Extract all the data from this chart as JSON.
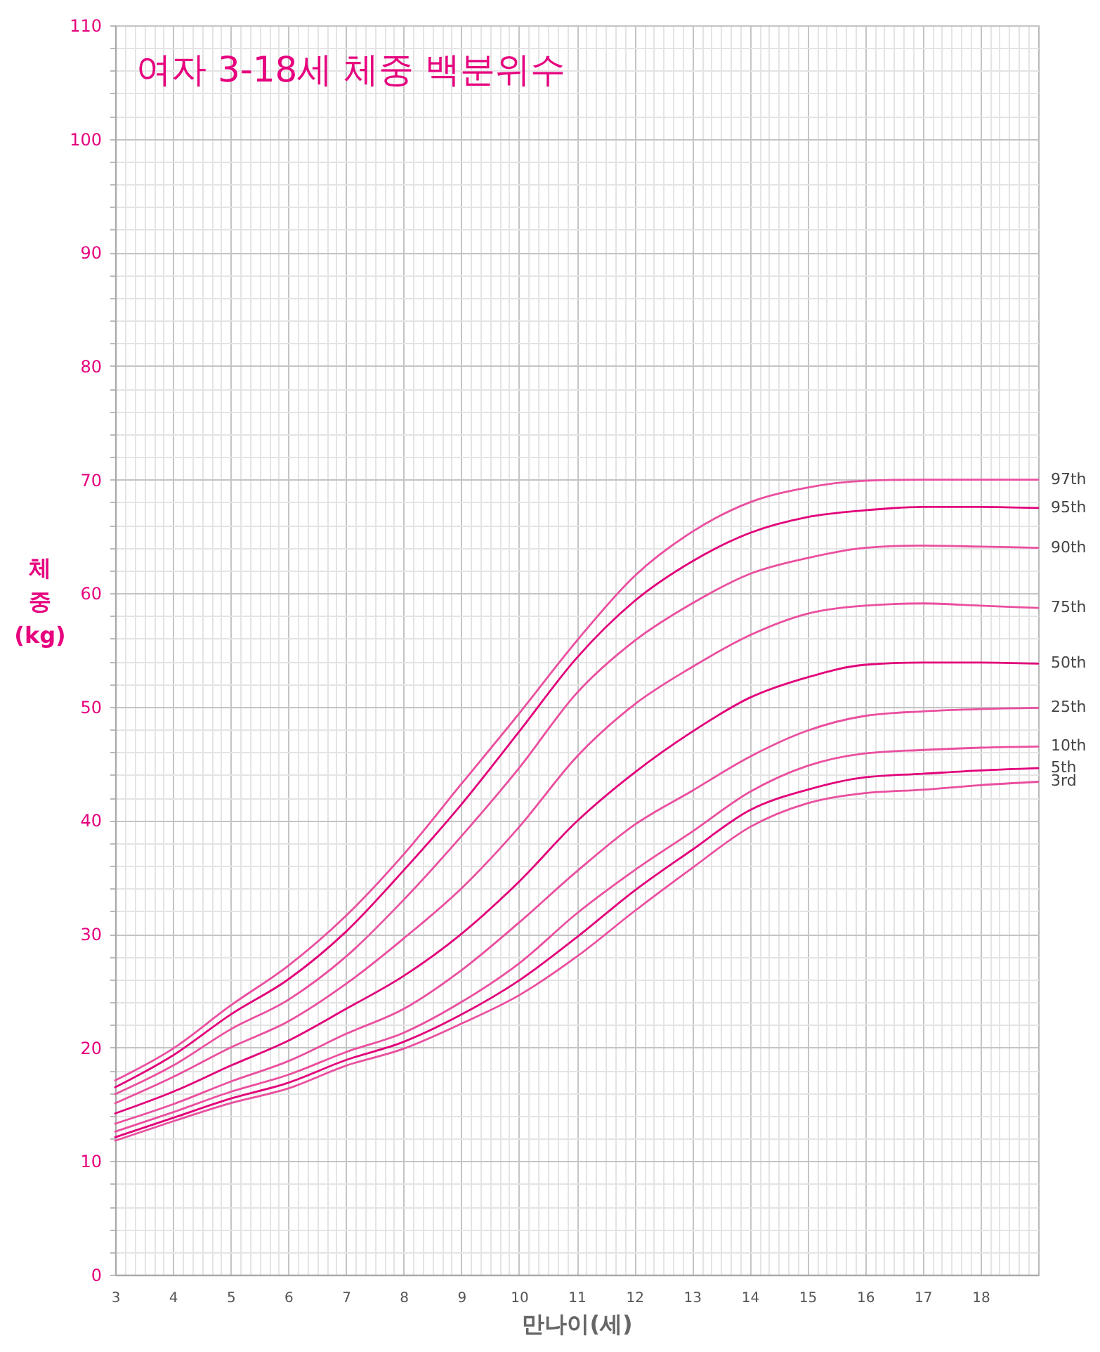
{
  "chart_data": {
    "type": "line",
    "title": "여자 3-18세 체중 백분위수",
    "xlabel": "만나이(세)",
    "ylabel": "체\n중\n(kg)",
    "x": [
      3,
      4,
      5,
      6,
      7,
      8,
      9,
      10,
      11,
      12,
      13,
      14,
      15,
      16,
      17,
      18,
      19
    ],
    "series": [
      {
        "name": "97th",
        "color": "#ea4f9f",
        "values": [
          17.1,
          19.9,
          23.7,
          27.2,
          31.6,
          37.0,
          43.2,
          49.4,
          55.8,
          61.5,
          65.4,
          68.0,
          69.3,
          69.9,
          70.0,
          70.0,
          70.0
        ]
      },
      {
        "name": "95th",
        "color": "#e2007a",
        "values": [
          16.5,
          19.3,
          22.9,
          26.0,
          30.2,
          35.6,
          41.4,
          47.8,
          54.3,
          59.3,
          62.8,
          65.3,
          66.7,
          67.3,
          67.6,
          67.6,
          67.5
        ]
      },
      {
        "name": "90th",
        "color": "#ea4f9f",
        "values": [
          15.9,
          18.4,
          21.6,
          24.2,
          28.0,
          33.0,
          38.6,
          44.6,
          51.2,
          55.8,
          59.1,
          61.7,
          63.1,
          64.0,
          64.2,
          64.1,
          64.0
        ]
      },
      {
        "name": "75th",
        "color": "#ea4f9f",
        "values": [
          15.1,
          17.4,
          20.0,
          22.3,
          25.6,
          29.6,
          34.0,
          39.4,
          45.6,
          50.2,
          53.5,
          56.3,
          58.2,
          58.9,
          59.1,
          58.9,
          58.7
        ]
      },
      {
        "name": "50th",
        "color": "#e2007a",
        "values": [
          14.2,
          16.1,
          18.4,
          20.6,
          23.4,
          26.3,
          30.0,
          34.6,
          39.9,
          44.2,
          47.8,
          50.8,
          52.6,
          53.7,
          53.9,
          53.9,
          53.8
        ]
      },
      {
        "name": "25th",
        "color": "#ea4f9f",
        "values": [
          13.3,
          15.0,
          17.0,
          18.8,
          21.2,
          23.4,
          26.8,
          31.0,
          35.5,
          39.6,
          42.6,
          45.6,
          47.9,
          49.2,
          49.6,
          49.8,
          49.9
        ]
      },
      {
        "name": "10th",
        "color": "#ea4f9f",
        "values": [
          12.6,
          14.3,
          16.1,
          17.6,
          19.6,
          21.3,
          24.0,
          27.4,
          31.8,
          35.6,
          39.0,
          42.5,
          44.8,
          45.9,
          46.2,
          46.4,
          46.5
        ]
      },
      {
        "name": "5th",
        "color": "#e2007a",
        "values": [
          12.1,
          13.8,
          15.5,
          16.9,
          18.9,
          20.5,
          22.9,
          25.9,
          29.7,
          33.8,
          37.4,
          40.9,
          42.7,
          43.8,
          44.1,
          44.4,
          44.6
        ]
      },
      {
        "name": "3rd",
        "color": "#ea4f9f",
        "values": [
          11.8,
          13.5,
          15.1,
          16.4,
          18.4,
          19.9,
          22.1,
          24.6,
          28.0,
          32.0,
          35.8,
          39.4,
          41.5,
          42.4,
          42.7,
          43.1,
          43.4
        ]
      }
    ],
    "xlim": [
      3,
      19
    ],
    "xticks": [
      3,
      {
        "value": 3.17,
        "label": null
      },
      {
        "value": 3.33,
        "label": null
      },
      {
        "value": 3.5,
        "label": null
      },
      {
        "value": 3.67,
        "label": null
      },
      {
        "value": 3.83,
        "label": null
      },
      4,
      {
        "value": 4.17,
        "label": null
      },
      {
        "value": 4.33,
        "label": null
      },
      {
        "value": 4.5,
        "label": null
      },
      {
        "value": 4.67,
        "label": null
      },
      {
        "value": 4.83,
        "label": null
      },
      5,
      {
        "value": 5.17,
        "label": null
      },
      {
        "value": 5.33,
        "label": null
      },
      {
        "value": 5.5,
        "label": null
      },
      {
        "value": 5.67,
        "label": null
      },
      {
        "value": 5.83,
        "label": null
      },
      6,
      {
        "value": 6.17,
        "label": null
      },
      {
        "value": 6.33,
        "label": null
      },
      {
        "value": 6.5,
        "label": null
      },
      {
        "value": 6.67,
        "label": null
      },
      {
        "value": 6.83,
        "label": null
      },
      7,
      {
        "value": 7.17,
        "label": null
      },
      {
        "value": 7.33,
        "label": null
      },
      {
        "value": 7.5,
        "label": null
      },
      {
        "value": 7.67,
        "label": null
      },
      {
        "value": 7.83,
        "label": null
      },
      8,
      {
        "value": 8.17,
        "label": null
      },
      {
        "value": 8.33,
        "label": null
      },
      {
        "value": 8.5,
        "label": null
      },
      {
        "value": 8.67,
        "label": null
      },
      {
        "value": 8.83,
        "label": null
      },
      9,
      {
        "value": 9.17,
        "label": null
      },
      {
        "value": 9.33,
        "label": null
      },
      {
        "value": 9.5,
        "label": null
      },
      {
        "value": 9.67,
        "label": null
      },
      {
        "value": 9.83,
        "label": null
      },
      10,
      {
        "value": 10.17,
        "label": null
      },
      {
        "value": 10.33,
        "label": null
      },
      {
        "value": 10.5,
        "label": null
      },
      {
        "value": 10.67,
        "label": null
      },
      {
        "value": 10.83,
        "label": null
      },
      11,
      {
        "value": 11.17,
        "label": null
      },
      {
        "value": 11.33,
        "label": null
      },
      {
        "value": 11.5,
        "label": null
      },
      {
        "value": 11.67,
        "label": null
      },
      {
        "value": 11.83,
        "label": null
      },
      12,
      {
        "value": 12.17,
        "label": null
      },
      {
        "value": 12.33,
        "label": null
      },
      {
        "value": 12.5,
        "label": null
      },
      {
        "value": 12.67,
        "label": null
      },
      {
        "value": 12.83,
        "label": null
      },
      13,
      {
        "value": 13.17,
        "label": null
      },
      {
        "value": 13.33,
        "label": null
      },
      {
        "value": 13.5,
        "label": null
      },
      {
        "value": 13.67,
        "label": null
      },
      {
        "value": 13.83,
        "label": null
      },
      14,
      {
        "value": 14.17,
        "label": null
      },
      {
        "value": 14.33,
        "label": null
      },
      {
        "value": 14.5,
        "label": null
      },
      {
        "value": 14.67,
        "label": null
      },
      {
        "value": 14.83,
        "label": null
      },
      15,
      {
        "value": 15.17,
        "label": null
      },
      {
        "value": 15.33,
        "label": null
      },
      {
        "value": 15.5,
        "label": null
      },
      {
        "value": 15.67,
        "label": null
      },
      {
        "value": 15.83,
        "label": null
      },
      16,
      {
        "value": 16.17,
        "label": null
      },
      {
        "value": 16.33,
        "label": null
      },
      {
        "value": 16.5,
        "label": null
      },
      {
        "value": 16.67,
        "label": null
      },
      {
        "value": 16.83,
        "label": null
      },
      17,
      {
        "value": 17.17,
        "label": null
      },
      {
        "value": 17.33,
        "label": null
      },
      {
        "value": 17.5,
        "label": null
      },
      {
        "value": 17.67,
        "label": null
      },
      {
        "value": 17.83,
        "label": null
      },
      18,
      {
        "value": 18.17,
        "label": null
      },
      {
        "value": 18.33,
        "label": null
      },
      {
        "value": 18.5,
        "label": null
      },
      {
        "value": 18.67,
        "label": null
      },
      {
        "value": 18.83,
        "label": null
      }
    ],
    "ylim": [
      0,
      110
    ],
    "yticks": [
      0,
      {
        "value": 2,
        "label": null
      },
      {
        "value": 4,
        "label": null
      },
      {
        "value": 6,
        "label": null
      },
      {
        "value": 8,
        "label": null
      },
      10,
      {
        "value": 12,
        "label": null
      },
      {
        "value": 14,
        "label": null
      },
      {
        "value": 16,
        "label": null
      },
      {
        "value": 18,
        "label": null
      },
      20,
      {
        "value": 22,
        "label": null
      },
      {
        "value": 24,
        "label": null
      },
      {
        "value": 26,
        "label": null
      },
      {
        "value": 28,
        "label": null
      },
      30,
      {
        "value": 32,
        "label": null
      },
      {
        "value": 34,
        "label": null
      },
      {
        "value": 36,
        "label": null
      },
      {
        "value": 38,
        "label": null
      },
      40,
      {
        "value": 42,
        "label": null
      },
      {
        "value": 44,
        "label": null
      },
      {
        "value": 46,
        "label": null
      },
      {
        "value": 48,
        "label": null
      },
      50,
      {
        "value": 52,
        "label": null
      },
      {
        "value": 54,
        "label": null
      },
      {
        "value": 56,
        "label": null
      },
      {
        "value": 58,
        "label": null
      },
      60,
      {
        "value": 62,
        "label": null
      },
      {
        "value": 64,
        "label": null
      },
      {
        "value": 66,
        "label": null
      },
      {
        "value": 68,
        "label": null
      },
      70,
      {
        "value": 72,
        "label": null
      },
      {
        "value": 74,
        "label": null
      },
      {
        "value": 76,
        "label": null
      },
      {
        "value": 78,
        "label": null
      },
      80,
      {
        "value": 82,
        "label": null
      },
      {
        "value": 84,
        "label": null
      },
      {
        "value": 86,
        "label": null
      },
      {
        "value": 88,
        "label": null
      },
      90,
      {
        "value": 92,
        "label": null
      },
      {
        "value": 94,
        "label": null
      },
      {
        "value": 96,
        "label": null
      },
      {
        "value": 98,
        "label": null
      },
      100,
      {
        "value": 102,
        "label": null
      },
      {
        "value": 104,
        "label": null
      },
      {
        "value": 106,
        "label": null
      },
      {
        "value": 108,
        "label": null
      },
      110
    ],
    "grid": true
  }
}
